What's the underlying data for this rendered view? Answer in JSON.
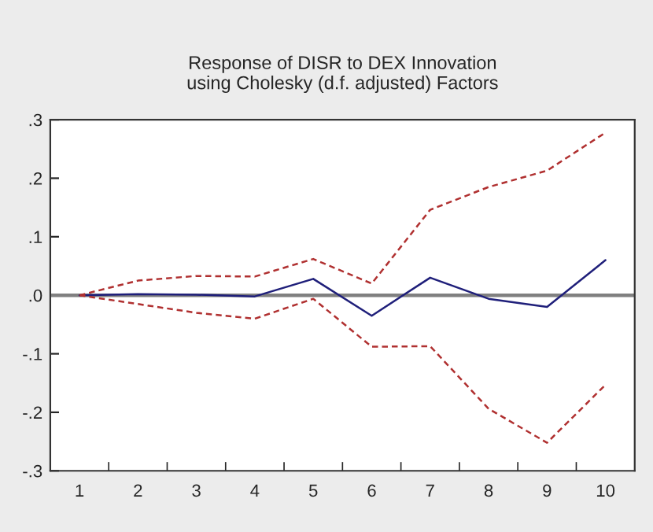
{
  "chart_data": {
    "type": "line",
    "title": "Response of DISR to DEX Innovation\nusing Cholesky (d.f. adjusted) Factors",
    "categories": [
      "1",
      "2",
      "3",
      "4",
      "5",
      "6",
      "7",
      "8",
      "9",
      "10"
    ],
    "series": [
      {
        "color": "#1f1f7a",
        "line_style": "solid",
        "values": [
          0.0,
          0.002,
          0.001,
          -0.002,
          0.028,
          -0.035,
          0.03,
          -0.006,
          -0.02,
          0.06
        ]
      },
      {
        "color": "#b03030",
        "line_style": "dashed",
        "values": [
          0.0,
          0.025,
          0.033,
          0.032,
          0.062,
          0.02,
          0.146,
          0.185,
          0.213,
          0.278
        ]
      },
      {
        "color": "#b03030",
        "line_style": "dashed",
        "values": [
          0.0,
          -0.015,
          -0.03,
          -0.04,
          -0.006,
          -0.088,
          -0.087,
          -0.194,
          -0.252,
          -0.153
        ]
      }
    ],
    "ylim": [
      -0.3,
      0.3
    ],
    "yticks": [
      {
        "value": -0.3,
        "label": "-.3"
      },
      {
        "value": -0.2,
        "label": "-.2"
      },
      {
        "value": -0.1,
        "label": "-.1"
      },
      {
        "value": 0,
        "label": ".0"
      },
      {
        "value": 0.1,
        "label": ".1"
      },
      {
        "value": 0.2,
        "label": ".2"
      },
      {
        "value": 0.3,
        "label": ".3"
      }
    ],
    "ref_lines": [
      {
        "axis": "y",
        "value": 0,
        "color": "#808080"
      }
    ],
    "grid": false,
    "legend": false,
    "marker": "none"
  }
}
